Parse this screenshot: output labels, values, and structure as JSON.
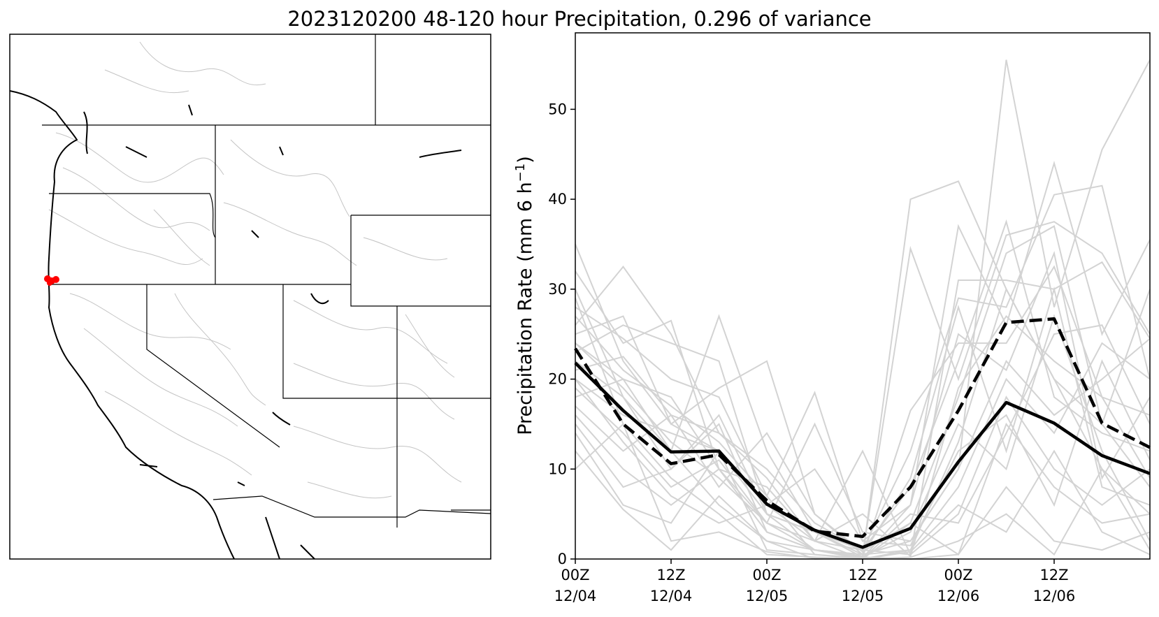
{
  "title": "2023120200 48-120 hour Precipitation, 0.296 of variance",
  "colors": {
    "ensemble": "#d3d3d3",
    "solid": "#000000",
    "dashed": "#000000",
    "basin": "#ff0000",
    "map_line": "#000000",
    "watershed": "#b8b8b8"
  },
  "map": {
    "description_icon": "western-us-basin-map",
    "highlight_basin": "red-basin-marker"
  },
  "chart_data": {
    "type": "line",
    "title": "2023120200 48-120 hour Precipitation, 0.296 of variance",
    "xlabel": "",
    "ylabel": "Precipitation Rate (mm 6 h",
    "ylabel_sup": "−1",
    "ylabel_close": ")",
    "xlim": [
      0,
      18
    ],
    "ylim": [
      0,
      58.5
    ],
    "yticks": [
      0,
      10,
      20,
      30,
      40,
      50
    ],
    "xticks": [
      {
        "x": 0,
        "line1": "00Z",
        "line2": "12/04"
      },
      {
        "x": 3,
        "line1": "12Z",
        "line2": "12/04"
      },
      {
        "x": 6,
        "line1": "00Z",
        "line2": "12/05"
      },
      {
        "x": 9,
        "line1": "12Z",
        "line2": "12/05"
      },
      {
        "x": 12,
        "line1": "00Z",
        "line2": "12/06"
      },
      {
        "x": 15,
        "line1": "12Z",
        "line2": "12/06"
      }
    ],
    "x": [
      0,
      1.5,
      3,
      4.5,
      6,
      7.5,
      9,
      10.5,
      12,
      13.5,
      15,
      16.5,
      18
    ],
    "series": [
      {
        "style": "solid",
        "values": [
          21.8,
          16.5,
          11.9,
          12.0,
          6.1,
          3.2,
          1.3,
          3.4,
          10.8,
          17.4,
          15.1,
          11.5,
          9.5
        ]
      },
      {
        "style": "dashed",
        "values": [
          23.4,
          15.0,
          10.6,
          11.6,
          6.5,
          3.1,
          2.5,
          8.0,
          16.5,
          26.3,
          26.7,
          15.1,
          12.4
        ]
      }
    ],
    "ensemble": [
      [
        35,
        22,
        15,
        12,
        5,
        1,
        0.5,
        2,
        10,
        55.5,
        28,
        45.5,
        55.5
      ],
      [
        32,
        24,
        26.5,
        10,
        4,
        1,
        0.3,
        40,
        42,
        30,
        20,
        15,
        8
      ],
      [
        30,
        18,
        12,
        27,
        12,
        3,
        0.5,
        34.5,
        20,
        36,
        37.5,
        34,
        25
      ],
      [
        28,
        24.5,
        20,
        18,
        7,
        18.5,
        2,
        6,
        37,
        26,
        44,
        25,
        35.5
      ],
      [
        26,
        32.5,
        25,
        14,
        10,
        4,
        1,
        12,
        29,
        28,
        40.5,
        41.5,
        20
      ],
      [
        25,
        27,
        15,
        19,
        22,
        5,
        0.8,
        4,
        18,
        34,
        37,
        15,
        30
      ],
      [
        24,
        20,
        18,
        10,
        8,
        2,
        12,
        0.5,
        31,
        31,
        30,
        33,
        24.5
      ],
      [
        23,
        26,
        24,
        22,
        5,
        3,
        0.2,
        16.5,
        24,
        24,
        32.5,
        18,
        9
      ],
      [
        22,
        18,
        10,
        15,
        3,
        1,
        0,
        5,
        4,
        14,
        25,
        26,
        15
      ],
      [
        21,
        22.5,
        16,
        8,
        14,
        5,
        0.5,
        1,
        13,
        30,
        20,
        10,
        5
      ],
      [
        20,
        16,
        14,
        12,
        6,
        2,
        1,
        8,
        22,
        37.5,
        18,
        14,
        12
      ],
      [
        19,
        14,
        8,
        11,
        4,
        15,
        3,
        2,
        10,
        22,
        16,
        20,
        24.5
      ],
      [
        18,
        20,
        12,
        6,
        2,
        1,
        0.5,
        9,
        28,
        12,
        30,
        8,
        6
      ],
      [
        17,
        12,
        16,
        14,
        9,
        2,
        0,
        1,
        8,
        20,
        14,
        24,
        20
      ],
      [
        16,
        10,
        6,
        10,
        3,
        1,
        0.2,
        3,
        15,
        10,
        27,
        12,
        2
      ],
      [
        15,
        8,
        10,
        16,
        5,
        3,
        1,
        0.5,
        5,
        18,
        10,
        6,
        10
      ],
      [
        14,
        6,
        4,
        12,
        1,
        0.5,
        0,
        4,
        0.5,
        15,
        8,
        4,
        5
      ],
      [
        12,
        5.5,
        1,
        7,
        2,
        0,
        0.2,
        0,
        0.5,
        8,
        2,
        1,
        3
      ],
      [
        10,
        15,
        2,
        3,
        0.8,
        0.1,
        0,
        0.2,
        2,
        5,
        0.5,
        10,
        1
      ],
      [
        24,
        19,
        13,
        9,
        4,
        2,
        5,
        0.3,
        19,
        27,
        22,
        18,
        16
      ],
      [
        27,
        21,
        17,
        13,
        7,
        0.5,
        0.1,
        6,
        25,
        21,
        34,
        9,
        18
      ],
      [
        29,
        15,
        9,
        5,
        0.5,
        0.2,
        0,
        0.8,
        6,
        3,
        12,
        3,
        0.5
      ],
      [
        20,
        13,
        7,
        4,
        6,
        10,
        2,
        1.5,
        12,
        16,
        6,
        22,
        11
      ]
    ]
  }
}
